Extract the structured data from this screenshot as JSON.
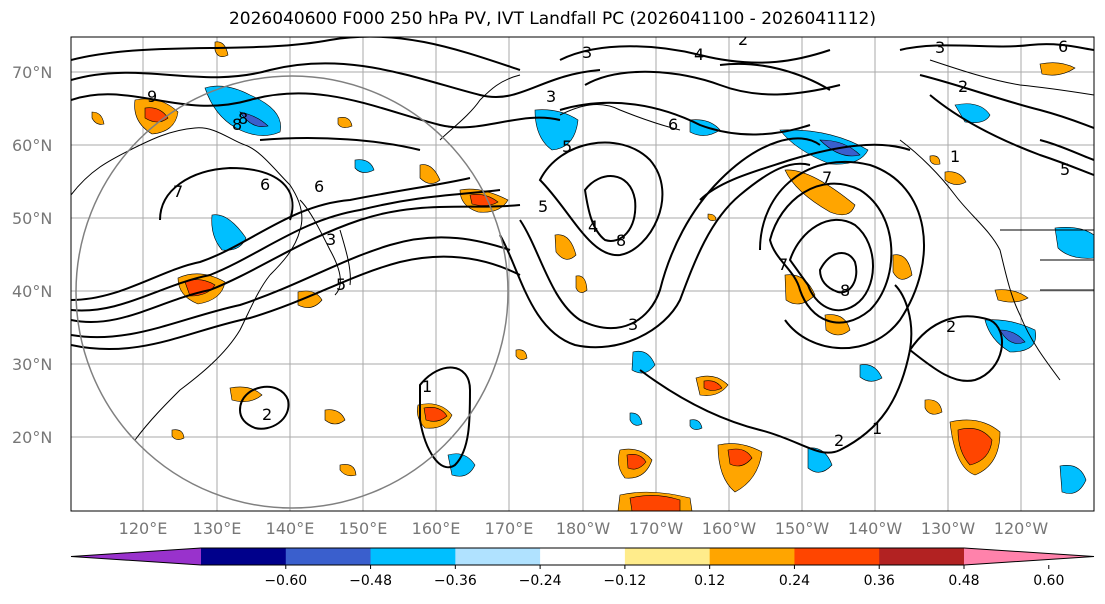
{
  "title": "2026040600 F000 250 hPa PV, IVT Landfall PC (2026041100 - 2026041112)",
  "latitude_labels": [
    "70°N",
    "60°N",
    "50°N",
    "40°N",
    "30°N",
    "20°N"
  ],
  "longitude_labels": [
    "120°E",
    "130°E",
    "140°E",
    "150°E",
    "160°E",
    "170°E",
    "180°W",
    "170°W",
    "160°W",
    "150°W",
    "140°W",
    "130°W",
    "120°W"
  ],
  "colorbar": {
    "tick_labels": [
      "−0.60",
      "−0.48",
      "−0.36",
      "−0.24",
      "−0.12",
      "0.12",
      "0.24",
      "0.36",
      "0.48",
      "0.60"
    ],
    "colors": [
      "#9932cc",
      "#00008b",
      "#3a5fcd",
      "#00bfff",
      "#b0e2ff",
      "#ffffff",
      "#ffec8b",
      "#ffa500",
      "#ff4500",
      "#b22222",
      "#ff82ab"
    ]
  },
  "contour_labels": [
    "9",
    "8",
    "7",
    "6",
    "5",
    "4",
    "3",
    "2",
    "1",
    "3",
    "2",
    "6",
    "5",
    "4",
    "8",
    "8",
    "7",
    "6",
    "3",
    "7",
    "8",
    "2",
    "1",
    "2",
    "1",
    "5",
    "3",
    "6",
    "5",
    "2",
    "3"
  ]
}
